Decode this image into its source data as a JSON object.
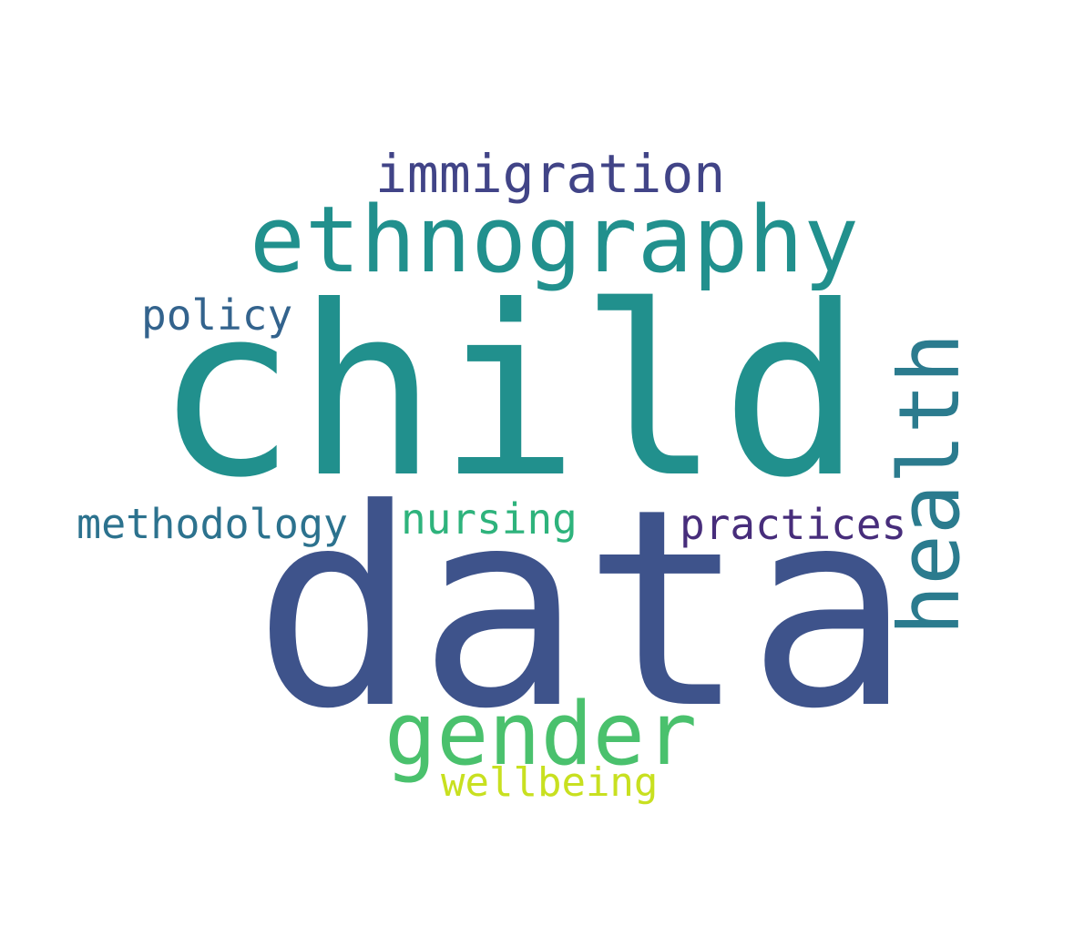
{
  "words": {
    "child": {
      "text": "child",
      "color": "#21908d"
    },
    "data": {
      "text": "data",
      "color": "#3e538b"
    },
    "ethnography": {
      "text": "ethnography",
      "color": "#21908d"
    },
    "health": {
      "text": "health",
      "color": "#2b7b8e"
    },
    "immigration": {
      "text": "immigration",
      "color": "#414487"
    },
    "policy": {
      "text": "policy",
      "color": "#33638d"
    },
    "methodology": {
      "text": "methodology",
      "color": "#2c728e"
    },
    "nursing": {
      "text": "nursing",
      "color": "#2eb37c"
    },
    "practices": {
      "text": "practices",
      "color": "#472d7b"
    },
    "gender": {
      "text": "gender",
      "color": "#4ac16d"
    },
    "wellbeing": {
      "text": "wellbeing",
      "color": "#c8e020"
    }
  }
}
